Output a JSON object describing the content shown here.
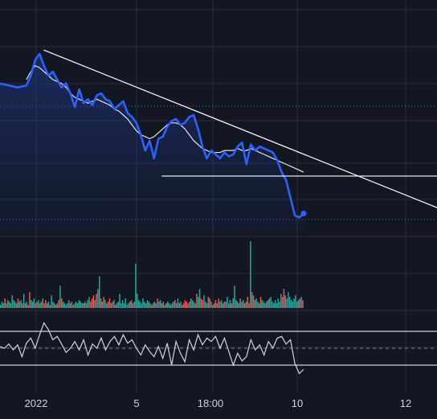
{
  "colors": {
    "background": "#131722",
    "grid": "#2a2e39",
    "price_line": "#2962ff",
    "ma_line": "#e0e3eb",
    "trendline": "#ffffff",
    "volume_up": "#26a69a",
    "volume_down": "#ef5350",
    "oscillator": "#d1d4dc",
    "area_top": "#1f3a8a",
    "dotted_level": "#5d6b9a"
  },
  "chart_data": [
    {
      "type": "line",
      "panel": "price",
      "x_ticks": [
        "2022",
        "5",
        "18:00",
        "10",
        "12"
      ],
      "x_range": [
        0,
        100
      ],
      "y_range": [
        0,
        100
      ],
      "series": [
        {
          "role": "price",
          "x": [
            0,
            2,
            4,
            6,
            7,
            8,
            9,
            10,
            11,
            12,
            13,
            14,
            15,
            16,
            17,
            18,
            19,
            20,
            21,
            22,
            23,
            24,
            25,
            26,
            27,
            28,
            29,
            30,
            31,
            32,
            33,
            34,
            35,
            36,
            37,
            38,
            39,
            40,
            41,
            42,
            43,
            44,
            45,
            46,
            47,
            48,
            49,
            50,
            51,
            52,
            53,
            54,
            55,
            56,
            57,
            58,
            59,
            60,
            61,
            62,
            63,
            64,
            65,
            66,
            67,
            68,
            69
          ],
          "y": [
            76,
            75,
            74,
            75,
            80,
            88,
            91,
            85,
            80,
            82,
            78,
            74,
            76,
            71,
            64,
            73,
            66,
            68,
            65,
            70,
            71,
            68,
            67,
            63,
            65,
            67,
            61,
            59,
            56,
            50,
            42,
            47,
            38,
            48,
            49,
            54,
            57,
            58,
            55,
            56,
            59,
            60,
            53,
            44,
            38,
            42,
            40,
            38,
            41,
            39,
            40,
            44,
            46,
            35,
            45,
            42,
            44,
            43,
            42,
            41,
            37,
            31,
            27,
            18,
            9,
            8,
            10
          ]
        },
        {
          "role": "moving-average",
          "x": [
            6,
            7,
            8,
            9,
            10,
            11,
            12,
            13,
            14,
            15,
            16,
            17,
            18,
            19,
            20,
            21,
            22,
            23,
            24,
            25,
            26,
            27,
            28,
            29,
            30,
            31,
            32,
            33,
            34,
            35,
            36,
            37,
            38,
            39,
            40,
            41,
            42,
            43,
            44,
            45,
            46,
            47,
            48,
            49,
            50,
            51,
            52,
            53,
            54,
            55,
            56,
            57,
            58,
            59,
            60,
            61,
            62,
            63,
            64,
            65,
            66,
            67,
            68,
            69
          ],
          "y": [
            78,
            82,
            85,
            84,
            82,
            80,
            78,
            77,
            76,
            74,
            71,
            69,
            68,
            67,
            66,
            67,
            68,
            67,
            66,
            65,
            63,
            62,
            60,
            58,
            55,
            52,
            50,
            49,
            48,
            49,
            51,
            53,
            55,
            56,
            56,
            55,
            53,
            50,
            47,
            45,
            43,
            42,
            41,
            41,
            41,
            42,
            42,
            42,
            43,
            42,
            42,
            43,
            42,
            41,
            40,
            39,
            38,
            37,
            36,
            35,
            34,
            33,
            32,
            31
          ]
        }
      ],
      "trendlines": [
        {
          "x": [
            10,
            100
          ],
          "y": [
            93,
            13
          ]
        },
        {
          "x": [
            37,
            100
          ],
          "y": [
            29,
            29
          ]
        }
      ],
      "dotted_levels": [
        64.5,
        7
      ]
    },
    {
      "type": "bar",
      "panel": "volume",
      "values": [
        2,
        4,
        3,
        6,
        3,
        5,
        4,
        3,
        8,
        5,
        4,
        3,
        6,
        4,
        5,
        3,
        9,
        3,
        4,
        2,
        10,
        5,
        4,
        6,
        3,
        4,
        5,
        3,
        4,
        6,
        3,
        5,
        3,
        4,
        2,
        8,
        4,
        3,
        2,
        3,
        5,
        14,
        6,
        4,
        3,
        2,
        3,
        5,
        3,
        4,
        2,
        3,
        4,
        3,
        5,
        4,
        3,
        3,
        4,
        3,
        5,
        7,
        4,
        6,
        8,
        5,
        9,
        12,
        20,
        6,
        4,
        7,
        5,
        3,
        4,
        6,
        3,
        4,
        5,
        2,
        3,
        4,
        9,
        3,
        5,
        3,
        6,
        2,
        3,
        4,
        5,
        3,
        4,
        28,
        9,
        5,
        4,
        3,
        6,
        4,
        3,
        5,
        4,
        3,
        2,
        3,
        4,
        3,
        6,
        4,
        5,
        3,
        4,
        2,
        3,
        4,
        3,
        2,
        3,
        4,
        5,
        3,
        6,
        3,
        4,
        2,
        3,
        5,
        4,
        3,
        4,
        6,
        5,
        4,
        3,
        9,
        7,
        12,
        6,
        5,
        8,
        4,
        3,
        7,
        6,
        4,
        2,
        3,
        5,
        3,
        6,
        4,
        5,
        3,
        4,
        4,
        7,
        3,
        5,
        3,
        6,
        14,
        5,
        4,
        3,
        6,
        4,
        5,
        3,
        4,
        7,
        3,
        42,
        10,
        8,
        5,
        6,
        4,
        3,
        7,
        5,
        4,
        3,
        4,
        5,
        6,
        7,
        4,
        3,
        5,
        3,
        6,
        4,
        9,
        7,
        12,
        8,
        6,
        10,
        7,
        5,
        4,
        6,
        8,
        4,
        5,
        6,
        7,
        5
      ]
    },
    {
      "type": "line",
      "panel": "oscillator",
      "y_range": [
        0,
        100
      ],
      "levels": [
        70,
        50,
        30
      ],
      "x": [
        0,
        1,
        2,
        3,
        4,
        5,
        6,
        7,
        8,
        9,
        10,
        11,
        12,
        13,
        14,
        15,
        16,
        17,
        18,
        19,
        20,
        21,
        22,
        23,
        24,
        25,
        26,
        27,
        28,
        29,
        30,
        31,
        32,
        33,
        34,
        35,
        36,
        37,
        38,
        39,
        40,
        41,
        42,
        43,
        44,
        45,
        46,
        47,
        48,
        49,
        50,
        51,
        52,
        53,
        54,
        55,
        56,
        57,
        58,
        59,
        60,
        61,
        62,
        63,
        64,
        65,
        66,
        67,
        68,
        69
      ],
      "y": [
        52,
        50,
        55,
        48,
        54,
        40,
        56,
        62,
        50,
        66,
        80,
        72,
        60,
        64,
        55,
        45,
        50,
        58,
        48,
        60,
        42,
        55,
        50,
        62,
        48,
        58,
        64,
        54,
        66,
        56,
        60,
        50,
        42,
        54,
        46,
        40,
        52,
        38,
        56,
        30,
        58,
        44,
        34,
        60,
        48,
        66,
        54,
        62,
        58,
        64,
        50,
        62,
        46,
        30,
        44,
        35,
        40,
        60,
        48,
        54,
        42,
        58,
        50,
        62,
        64,
        55,
        60,
        32,
        20,
        25
      ]
    }
  ]
}
